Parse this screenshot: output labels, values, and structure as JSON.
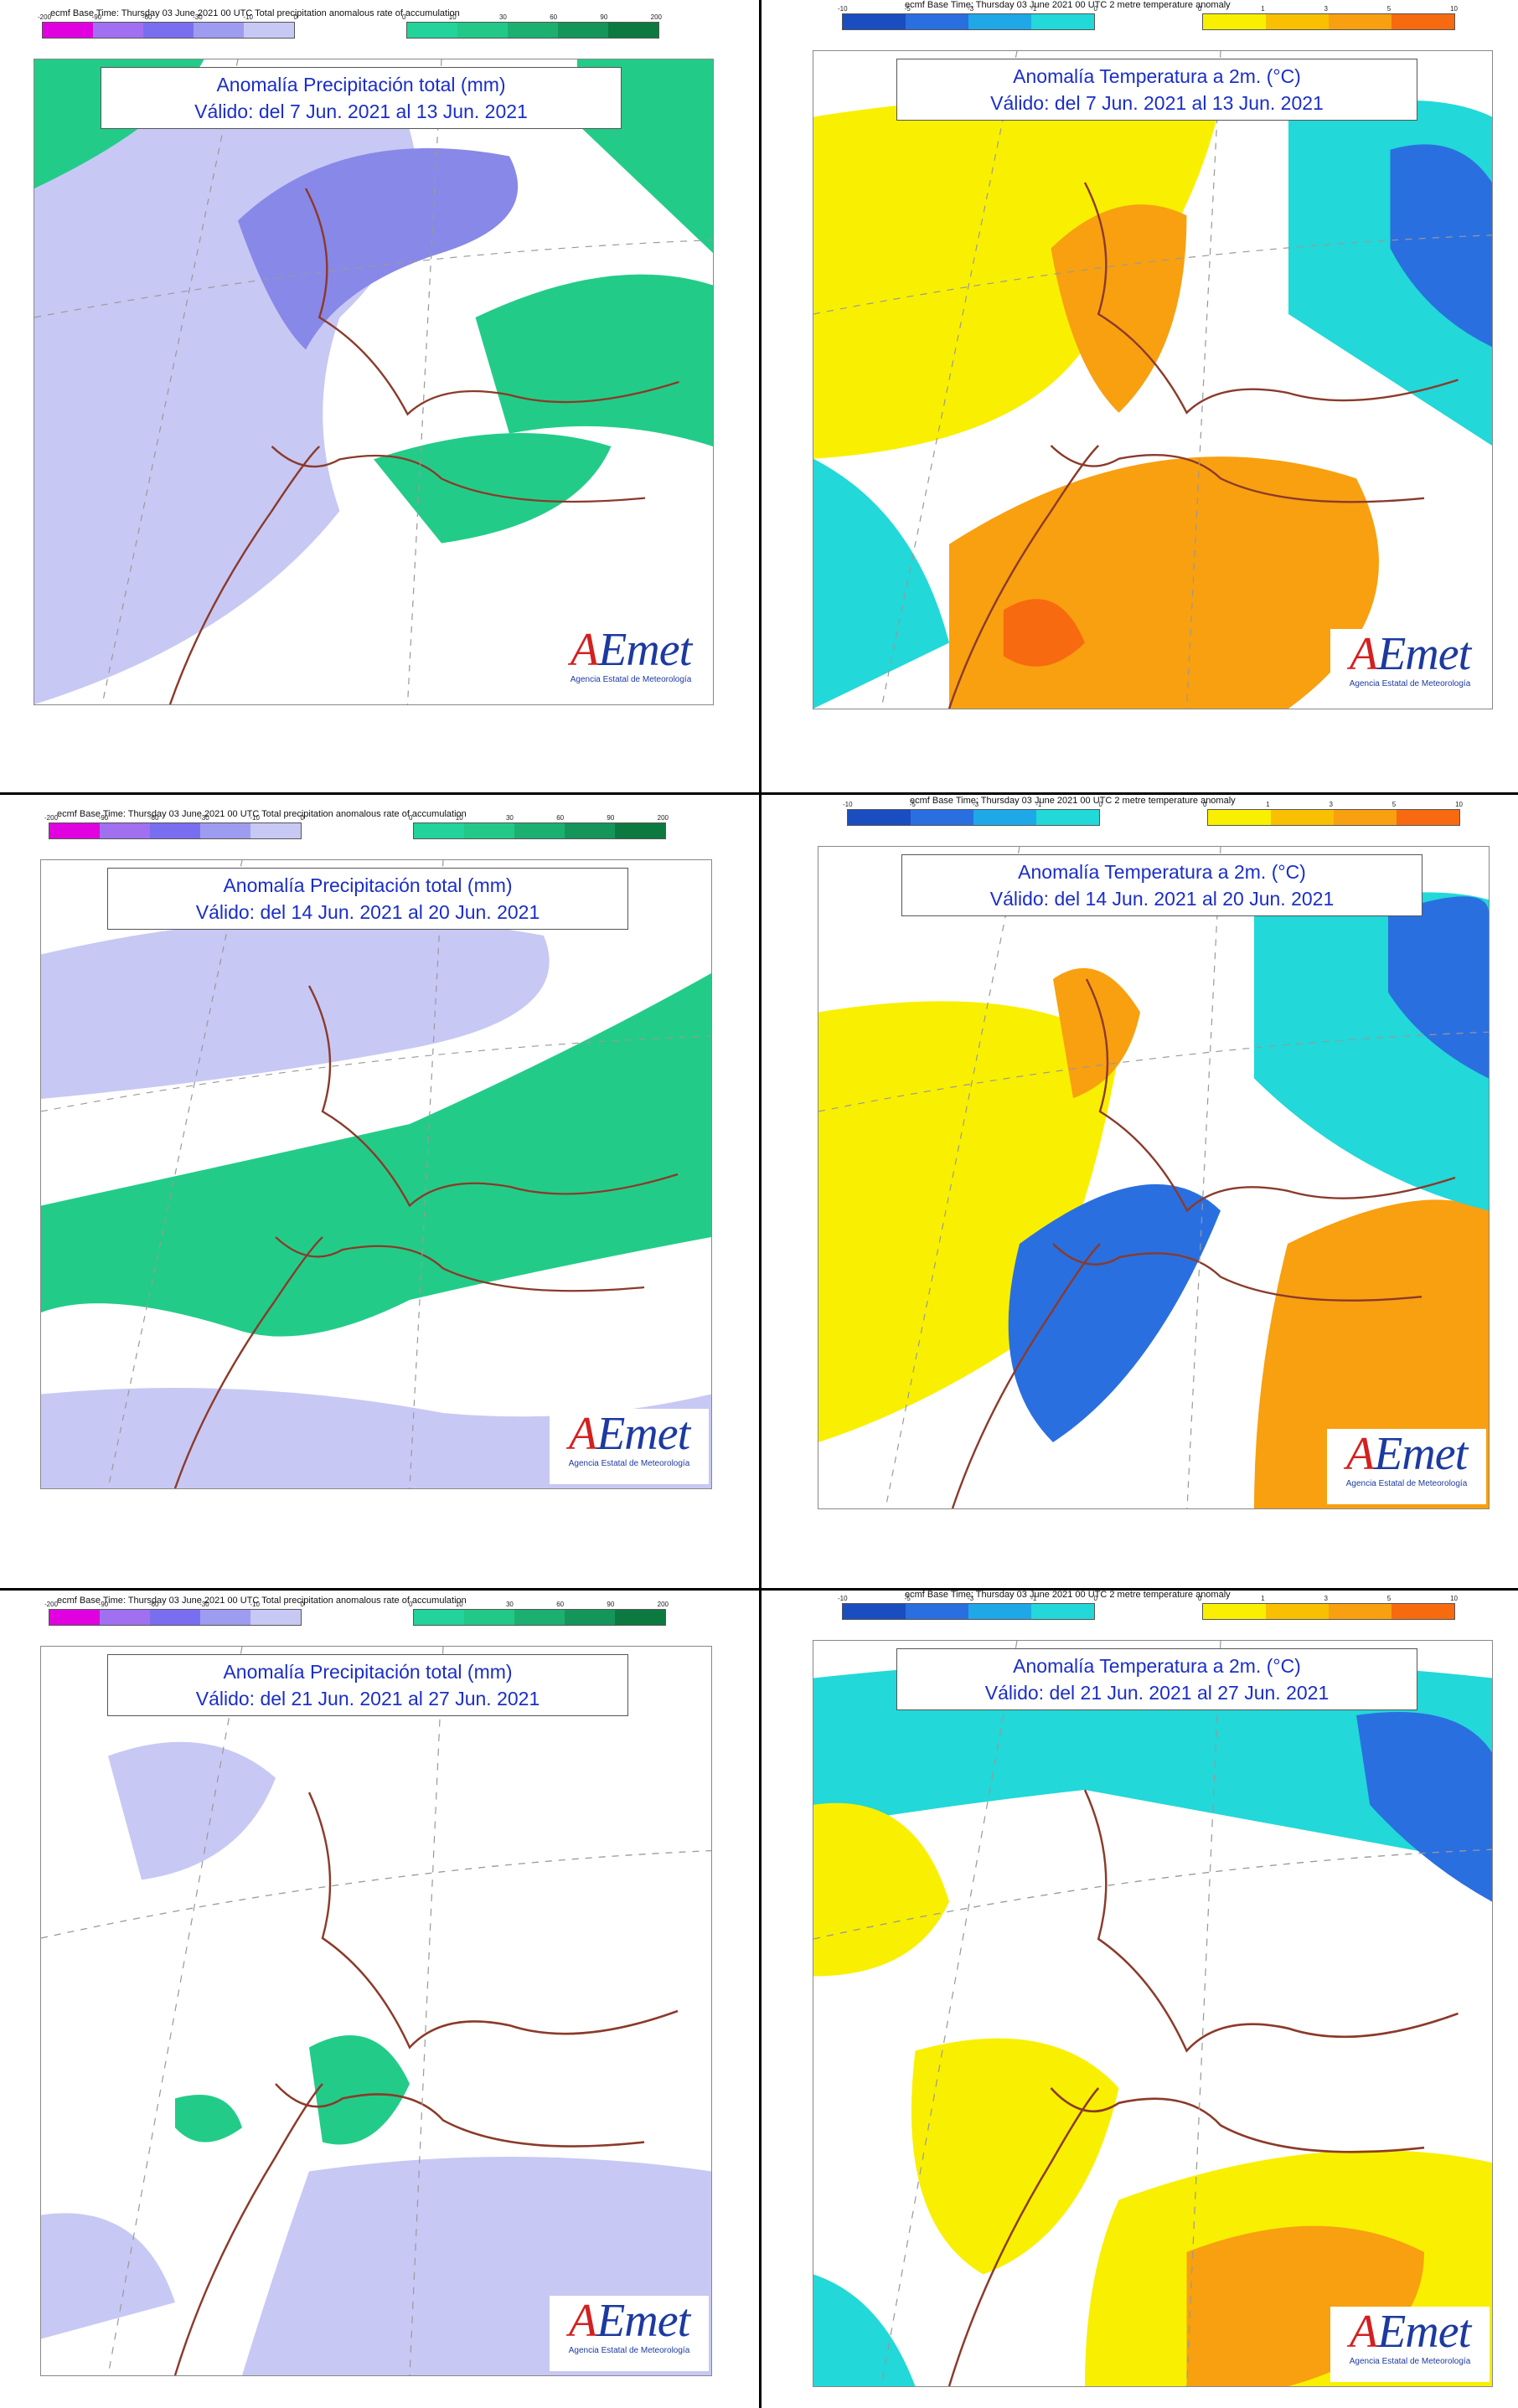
{
  "legends": {
    "precip": {
      "caption": "ecmf  Base Time: Thursday 03 June 2021 00 UTC Total precipitation anomalous rate of accumulation",
      "neg_colors": [
        "#e000e0",
        "#a070f0",
        "#7a6ef0",
        "#9e9cf0",
        "#c8c8f5"
      ],
      "pos_colors": [
        "#22d39a",
        "#22c888",
        "#1cb070",
        "#14965a",
        "#0c7a40"
      ],
      "neg_ticks": [
        "-200",
        "-90",
        "-60",
        "-30",
        "-10",
        "0"
      ],
      "pos_ticks": [
        "0",
        "10",
        "30",
        "60",
        "90",
        "200"
      ]
    },
    "temp": {
      "caption": "ecmf  Base Time: Thursday 03 June 2021 00 UTC 2 metre temperature anomaly",
      "neg_colors": [
        "#1a4dbf",
        "#2a6fe0",
        "#1ea8e8",
        "#22d8d8"
      ],
      "pos_colors": [
        "#f8f000",
        "#f8c000",
        "#f8a010",
        "#f86a10"
      ],
      "neg_ticks": [
        "-10",
        "-5",
        "-3",
        "-1",
        "0"
      ],
      "pos_ticks": [
        "0",
        "1",
        "3",
        "5",
        "10"
      ]
    }
  },
  "colors": {
    "precip_bg": "#c8c8f5",
    "precip_dark": "#8888e8",
    "precip_green": "#22cc88",
    "temp_cyan": "#22d8d8",
    "temp_blue": "#2a6fe0",
    "temp_yellow": "#f8f000",
    "temp_orange": "#f8a010",
    "temp_red": "#f86a10",
    "coast": "#8b3a2a"
  },
  "panels": [
    {
      "kind": "precip",
      "title1": "Anomalía Precipitación total (mm)",
      "title2": "Válido: del 7 Jun. 2021 al 13 Jun. 2021"
    },
    {
      "kind": "temp",
      "title1": "Anomalía Temperatura a 2m. (°C)",
      "title2": "Válido: del 7 Jun. 2021 al 13 Jun. 2021"
    },
    {
      "kind": "precip",
      "title1": "Anomalía Precipitación total (mm)",
      "title2": "Válido: del 14 Jun. 2021 al 20 Jun. 2021"
    },
    {
      "kind": "temp",
      "title1": "Anomalía Temperatura a 2m. (°C)",
      "title2": "Válido: del 14 Jun. 2021 al 20 Jun. 2021"
    },
    {
      "kind": "precip",
      "title1": "Anomalía Precipitación total (mm)",
      "title2": "Válido: del 21 Jun. 2021 al 27 Jun. 2021"
    },
    {
      "kind": "temp",
      "title1": "Anomalía Temperatura a 2m. (°C)",
      "title2": "Válido: del 21 Jun. 2021 al 27 Jun. 2021"
    }
  ],
  "logo": {
    "main_a": "A",
    "main_rest": "Emet",
    "sub": "Agencia Estatal de Meteorología"
  }
}
